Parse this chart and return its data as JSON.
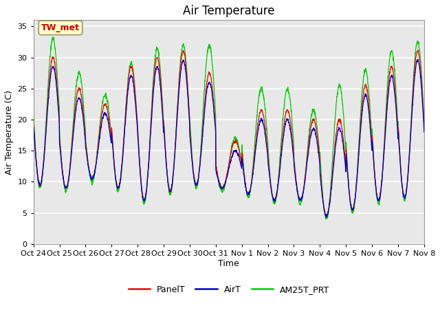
{
  "title": "Air Temperature",
  "ylabel": "Air Temperature (C)",
  "xlabel": "Time",
  "annotation": "TW_met",
  "ylim": [
    0,
    36
  ],
  "yticks": [
    0,
    5,
    10,
    15,
    20,
    25,
    30,
    35
  ],
  "x_labels": [
    "Oct 24",
    "Oct 25",
    "Oct 26",
    "Oct 27",
    "Oct 28",
    "Oct 29",
    "Oct 30",
    "Oct 31",
    "Nov 1",
    "Nov 2",
    "Nov 3",
    "Nov 4",
    "Nov 5",
    "Nov 6",
    "Nov 7",
    "Nov 8"
  ],
  "series_colors": [
    "#ff0000",
    "#0000cc",
    "#00cc00"
  ],
  "series_names": [
    "PanelT",
    "AirT",
    "AM25T_PRT"
  ],
  "fig_bg": "#ffffff",
  "plot_bg": "#e8e8e8",
  "grid_color": "#ffffff",
  "title_fontsize": 12,
  "label_fontsize": 9,
  "tick_fontsize": 8,
  "legend_fontsize": 9,
  "n_days": 15,
  "day_mins": [
    9.5,
    9.0,
    10.5,
    9.0,
    7.0,
    8.5,
    9.5,
    9.0,
    8.0,
    7.0,
    7.0,
    4.5,
    5.5,
    7.0,
    7.5,
    8.0
  ],
  "day_maxs": [
    30.0,
    25.0,
    22.5,
    28.5,
    30.0,
    31.0,
    27.5,
    16.5,
    21.5,
    21.5,
    20.0,
    20.0,
    25.5,
    28.5,
    31.0,
    29.5
  ],
  "am25_extra": [
    3.0,
    2.5,
    1.5,
    0.5,
    1.5,
    1.0,
    4.5,
    0.5,
    3.5,
    3.5,
    1.5,
    5.5,
    2.5,
    2.5,
    1.5,
    1.5
  ]
}
